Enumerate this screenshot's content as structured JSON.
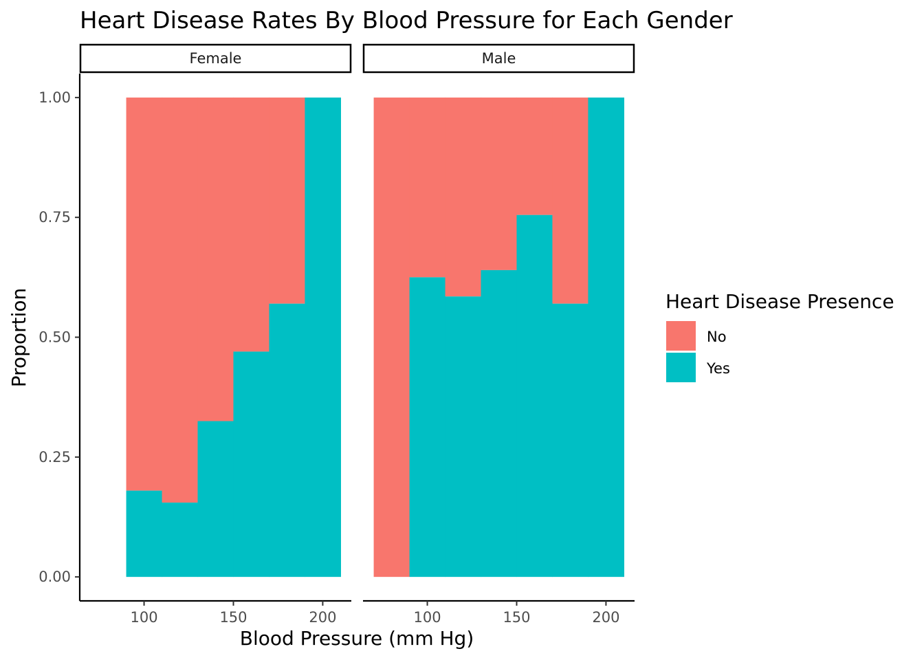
{
  "chart_data": {
    "type": "bar",
    "subtype": "stacked-proportion histogram, faceted",
    "title": "Heart Disease Rates By Blood Pressure for Each Gender",
    "xlabel": "Blood Pressure (mm Hg)",
    "ylabel": "Proportion",
    "xlim": [
      64,
      216
    ],
    "ylim": [
      -0.05,
      1.05
    ],
    "x_ticks": [
      100,
      150,
      200
    ],
    "y_ticks": [
      0.0,
      0.25,
      0.5,
      0.75,
      1.0
    ],
    "y_tick_labels": [
      "0.00",
      "0.25",
      "0.50",
      "0.75",
      "1.00"
    ],
    "grid": false,
    "legend": {
      "title": "Heart Disease Presence",
      "position": "right",
      "entries": [
        {
          "label": "No",
          "color": "#F8766D"
        },
        {
          "label": "Yes",
          "color": "#00BFC4"
        }
      ]
    },
    "facets": [
      {
        "label": "Female",
        "bins": [
          {
            "x0": 90,
            "x1": 110,
            "yes": 0.18
          },
          {
            "x0": 110,
            "x1": 130,
            "yes": 0.155
          },
          {
            "x0": 130,
            "x1": 150,
            "yes": 0.325
          },
          {
            "x0": 150,
            "x1": 170,
            "yes": 0.47
          },
          {
            "x0": 170,
            "x1": 190,
            "yes": 0.57
          },
          {
            "x0": 190,
            "x1": 210,
            "yes": 1.0
          }
        ]
      },
      {
        "label": "Male",
        "bins": [
          {
            "x0": 70,
            "x1": 90,
            "yes": 0.0
          },
          {
            "x0": 90,
            "x1": 110,
            "yes": 0.625
          },
          {
            "x0": 110,
            "x1": 130,
            "yes": 0.585
          },
          {
            "x0": 130,
            "x1": 150,
            "yes": 0.64
          },
          {
            "x0": 150,
            "x1": 170,
            "yes": 0.755
          },
          {
            "x0": 170,
            "x1": 190,
            "yes": 0.57
          },
          {
            "x0": 190,
            "x1": 210,
            "yes": 1.0
          }
        ]
      }
    ]
  }
}
